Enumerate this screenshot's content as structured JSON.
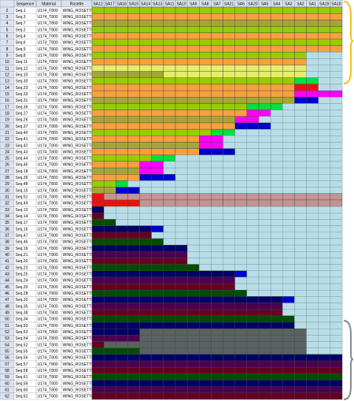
{
  "columns": [
    "Sequence",
    "Material",
    "Rosette"
  ],
  "sa_columns": [
    "SA12",
    "SA17",
    "SA16",
    "SA15",
    "SA14",
    "SA13",
    "SA11",
    "SA10",
    "SA9",
    "SA8",
    "SA7",
    "SA21",
    "SA6",
    "SA20",
    "SA5",
    "SA4",
    "SA3",
    "SA2",
    "SA1",
    "SA19",
    "SA18"
  ],
  "colors": {
    "L": "#99cc00",
    "O": "#f7a040",
    "K": "#a6a638",
    "Y": "#e4ee6a",
    "G": "#00e040",
    "M": "#ff00ff",
    "B": "#0000cc",
    "r": "#ee1010",
    "b": "#b7dee8",
    "X": "#c49494",
    "N": "#000066",
    "R": "#660022",
    "D": "#004d00",
    "P": "#4b0050",
    "S": "#5a6262"
  },
  "rows": [
    {
      "n": 2,
      "sequence": "Seq.1",
      "material": "U174_T800",
      "rosette": "WING_ROSETTE",
      "cells": "LLLLLLLLLLLLLLLLLLLLL"
    },
    {
      "n": 3,
      "sequence": "Seq.3",
      "material": "U174_T800",
      "rosette": "WING_ROSETTE",
      "cells": "OOOOOOOOOOOOOOOOOOOOO"
    },
    {
      "n": 4,
      "sequence": "Seq.7",
      "material": "U174_T800",
      "rosette": "WING_ROSETTE",
      "cells": "KKKKKKKKKKKKKKKKKKKKK"
    },
    {
      "n": 5,
      "sequence": "Seq.2",
      "material": "U174_T800",
      "rosette": "WING_ROSETTE",
      "cells": "LLLLLLLLLLLLLLLLLLLLL"
    },
    {
      "n": 6,
      "sequence": "Seq.4",
      "material": "U174_T800",
      "rosette": "WING_ROSETTE",
      "cells": "OOOOOOOOOOOOOOOOOOOOO"
    },
    {
      "n": 7,
      "sequence": "Seq.6",
      "material": "U174_T800",
      "rosette": "WING_ROSETTE",
      "cells": "LLLLLLLLLLLLLLLLLLLLL"
    },
    {
      "n": 8,
      "sequence": "Seq.9",
      "material": "U174_T800",
      "rosette": "WING_ROSETTE",
      "cells": "OOOOOOOOOOOOOOOOOOOOO"
    },
    {
      "n": 9,
      "sequence": "Seq.8",
      "material": "U174_T800",
      "rosette": "WING_ROSETTE",
      "cells": "LLLLLLLLLLLLLLLLLLbbb"
    },
    {
      "n": 10,
      "sequence": "Seq.11",
      "material": "U174_T800",
      "rosette": "WING_ROSETTE",
      "cells": "OOOOOOOOOOOOOOOOOObbb"
    },
    {
      "n": 11,
      "sequence": "Seq.12",
      "material": "U174_T800",
      "rosette": "WING_ROSETTE",
      "cells": "YYYYYYYYYYYYYYYYYYbbb"
    },
    {
      "n": 12,
      "sequence": "Seq.10",
      "material": "U174_T800",
      "rosette": "WING_ROSETTE",
      "cells": "KKKKKKYYYYYYYYYYYYbbb"
    },
    {
      "n": 13,
      "sequence": "Seq.30",
      "material": "U174_T800",
      "rosette": "WING_ROSETTE",
      "cells": "LLLLLLLLLLLLLLLLLGGbb"
    },
    {
      "n": 14,
      "sequence": "Seq.23",
      "material": "U174_T800",
      "rosette": "WING_ROSETTE",
      "cells": "OOOOOOOOOOOOOOOOOrrbb"
    },
    {
      "n": 15,
      "sequence": "Seq.33",
      "material": "U174_T800",
      "rosette": "WING_ROSETTE",
      "cells": "OOOOOOOOOOOOOOOOOMMMM"
    },
    {
      "n": 16,
      "sequence": "Seq.31",
      "material": "U174_T800",
      "rosette": "WING_ROSETTE",
      "cells": "KKKKKKKKKKKKKKKKKBBbb"
    },
    {
      "n": 17,
      "sequence": "Seq.36",
      "material": "U174_T800",
      "rosette": "WING_ROSETTE",
      "cells": "LLLLLLLLLLLLLGGGbbbbb"
    },
    {
      "n": 18,
      "sequence": "Seq.27",
      "material": "U174_T800",
      "rosette": "WING_ROSETTE",
      "cells": "OOOOOOOOOOOOOMMbbbbbb"
    },
    {
      "n": 19,
      "sequence": "Seq.26",
      "material": "U174_T800",
      "rosette": "WING_ROSETTE",
      "cells": "KKKKKKKKKKKKMMbbbbbbb"
    },
    {
      "n": 20,
      "sequence": "Seq.37",
      "material": "U174_T800",
      "rosette": "WING_ROSETTE",
      "cells": "OOOOOOOOOOOOBBBbbbbbb"
    },
    {
      "n": 21,
      "sequence": "Seq.40",
      "material": "U174_T800",
      "rosette": "WING_ROSETTE",
      "cells": "LLLLLLLLLLGGbbbbbbbbb"
    },
    {
      "n": 22,
      "sequence": "Seq.41",
      "material": "U174_T800",
      "rosette": "WING_ROSETTE",
      "cells": "OOOOOOOOOMMbbbbbbbbbb"
    },
    {
      "n": 23,
      "sequence": "Seq.42",
      "material": "U174_T800",
      "rosette": "WING_ROSETTE",
      "cells": "KKKKKKKKKMMbbbbbbbbbb"
    },
    {
      "n": 24,
      "sequence": "Seq.43",
      "material": "U174_T800",
      "rosette": "WING_ROSETTE",
      "cells": "OOOOOOOOOBBBbbbbbbbbb"
    },
    {
      "n": 25,
      "sequence": "Seq.44",
      "material": "U174_T800",
      "rosette": "WING_ROSETTE",
      "cells": "LLLLLGGbbbbbbbbbbbbbb"
    },
    {
      "n": 26,
      "sequence": "Seq.45",
      "material": "U174_T800",
      "rosette": "WING_ROSETTE",
      "cells": "OOOOMMbbbbbbbbbbbbbbb"
    },
    {
      "n": 27,
      "sequence": "Seq.18",
      "material": "U174_T800",
      "rosette": "WING_ROSETTE",
      "cells": "KKKKMMbbbbbbbbbbbbbbb"
    },
    {
      "n": 28,
      "sequence": "Seq.39",
      "material": "U174_T800",
      "rosette": "WING_ROSETTE",
      "cells": "OOOOBBBbbbbbbbbbbbbbb"
    },
    {
      "n": 29,
      "sequence": "Seq.48",
      "material": "U174_T800",
      "rosette": "WING_ROSETTE",
      "cells": "LLGbbbbbbbbbbbbbbbbbb"
    },
    {
      "n": 30,
      "sequence": "Seq.15",
      "material": "U174_T800",
      "rosette": "WING_ROSETTE",
      "cells": "KKBBbbbbbbbbbbbbbbbbb"
    },
    {
      "n": 31,
      "sequence": "Seq.51",
      "material": "U174_T800",
      "rosette": "WING_ROSETTE",
      "cells": "rXXXXXXXXXXXXXXXXXXXX"
    },
    {
      "n": 32,
      "sequence": "Seq.49",
      "material": "U174_T800",
      "rosette": "WING_ROSETTE",
      "cells": "rrrrXXXXXXXXXXXXXXXXX"
    },
    {
      "n": 33,
      "sequence": "Seq.13",
      "material": "U174_T800",
      "rosette": "WING_ROSETTE",
      "cells": "Nbbbbbbbbbbbbbbbbbbbb"
    },
    {
      "n": 34,
      "sequence": "Seq.14",
      "material": "U174_T800",
      "rosette": "WING_ROSETTE",
      "cells": "Rbbbbbbbbbbbbbbbbbbbb"
    },
    {
      "n": 35,
      "sequence": "Seq.17",
      "material": "U174_T800",
      "rosette": "WING_ROSETTE",
      "cells": "DDbbbbbbbbbbbbbbbbbbb"
    },
    {
      "n": 36,
      "sequence": "Seq.16",
      "material": "U174_T800",
      "rosette": "WING_ROSETTE",
      "cells": "NNNNNBbbbbbbbbbbbbbbb"
    },
    {
      "n": 37,
      "sequence": "Seq.47",
      "material": "U174_T800",
      "rosette": "WING_ROSETTE",
      "cells": "RRRRRbbbbbbbbbbbbbbbb"
    },
    {
      "n": 38,
      "sequence": "Seq.46",
      "material": "U174_T800",
      "rosette": "WING_ROSETTE",
      "cells": "DDDDDDbbbbbbbbbbbbbbb"
    },
    {
      "n": 39,
      "sequence": "Seq.19",
      "material": "U174_T800",
      "rosette": "WING_ROSETTE",
      "cells": "NNNNNNNNbbbbbbbbbbbbb"
    },
    {
      "n": 40,
      "sequence": "Seq.21",
      "material": "U174_T800",
      "rosette": "WING_ROSETTE",
      "cells": "PPPPPPPPbbbbbbbbbbbbb"
    },
    {
      "n": 41,
      "sequence": "Seq.20",
      "material": "U174_T800",
      "rosette": "WING_ROSETTE",
      "cells": "RRRRRRRRbbbbbbbbbbbbb"
    },
    {
      "n": 42,
      "sequence": "Seq.22",
      "material": "U174_T800",
      "rosette": "WING_ROSETTE",
      "cells": "DDDDDDDDDbbbbbbbbbbbb"
    },
    {
      "n": 43,
      "sequence": "Seq.25",
      "material": "U174_T800",
      "rosette": "WING_ROSETTE",
      "cells": "NNNNNNNNNNNNBbbbbbbbb"
    },
    {
      "n": 44,
      "sequence": "Seq.24",
      "material": "U174_T800",
      "rosette": "WING_ROSETTE",
      "cells": "PPPPPPPPPPPPbbbbbbbbb"
    },
    {
      "n": 45,
      "sequence": "Seq.29",
      "material": "U174_T800",
      "rosette": "WING_ROSETTE",
      "cells": "RRRRRRRRRRRRbbbbbbbbb"
    },
    {
      "n": 46,
      "sequence": "Seq.28",
      "material": "U174_T800",
      "rosette": "WING_ROSETTE",
      "cells": "DDDDDDDDDDDDDbbbbbbbb"
    },
    {
      "n": 47,
      "sequence": "Seq.32",
      "material": "U174_T800",
      "rosette": "WING_ROSETTE",
      "cells": "NNNNNNNNNNNNNNNNBbbbb"
    },
    {
      "n": 48,
      "sequence": "Seq.35",
      "material": "U174_T800",
      "rosette": "WING_ROSETTE",
      "cells": "PPPPPPPPPPPPPPPPbbbbb"
    },
    {
      "n": 49,
      "sequence": "Seq.38",
      "material": "U174_T800",
      "rosette": "WING_ROSETTE",
      "cells": "RRRRRRRRRRRRRRRRbbbbb"
    },
    {
      "n": 50,
      "sequence": "Seq.34",
      "material": "U174_T800",
      "rosette": "WING_ROSETTE",
      "cells": "DDDDDDDDDDDDDDDDDbbbb"
    },
    {
      "n": 51,
      "sequence": "Seq.50",
      "material": "U174_T800",
      "rosette": "WING_ROSETTE",
      "cells": "NNNNNNNNNNNNNNNNNbbbb"
    },
    {
      "n": 52,
      "sequence": "Seq.53",
      "material": "U174_T800",
      "rosette": "WING_ROSETTE",
      "cells": "NNNNSSSSSSSSSSSSSSbbb"
    },
    {
      "n": 53,
      "sequence": "Seq.54",
      "material": "U174_T800",
      "rosette": "WING_ROSETTE",
      "cells": "PPPPSSSSSSSSSSSSSSbbb"
    },
    {
      "n": 54,
      "sequence": "Seq.52",
      "material": "U174_T800",
      "rosette": "WING_ROSETTE",
      "cells": "RSSSSSSSSSSSSSSSSSbbb"
    },
    {
      "n": 55,
      "sequence": "Seq.55",
      "material": "U174_T800",
      "rosette": "WING_ROSETTE",
      "cells": "DDDDSSSSSSSSSSSSSSbbb"
    },
    {
      "n": 56,
      "sequence": "Seq.56",
      "material": "U174_T800",
      "rosette": "WING_ROSETTE",
      "cells": "NNNNNNNNNNNNNNNNNNNNN"
    },
    {
      "n": 57,
      "sequence": "Seq.57",
      "material": "U174_T800",
      "rosette": "WING_ROSETTE",
      "cells": "PPPPPPPPPPPPPPPPPPPPP"
    },
    {
      "n": 58,
      "sequence": "Seq.58",
      "material": "U174_T800",
      "rosette": "WING_ROSETTE",
      "cells": "RRRRRRRRRRRRRRRRRRRRR"
    },
    {
      "n": 59,
      "sequence": "Seq.61",
      "material": "U174_T800",
      "rosette": "WING_ROSETTE",
      "cells": "DDDDDDDDDDDDDDDDDDDDD"
    },
    {
      "n": 60,
      "sequence": "Seq.59",
      "material": "U174_T800",
      "rosette": "WING_ROSETTE",
      "cells": "NNNNNNNNNNNNNNNNNNNNN"
    },
    {
      "n": 61,
      "sequence": "Seq.60",
      "material": "U174_T800",
      "rosette": "WING_ROSETTE",
      "cells": "PPPPPPPPPPPPPPPPPPPPP"
    },
    {
      "n": 62,
      "sequence": "Seq.62",
      "material": "U174_T800",
      "rosette": "WING_ROSETTE",
      "cells": "RRRRRRRRRRRRRRRRRRRRR"
    }
  ]
}
